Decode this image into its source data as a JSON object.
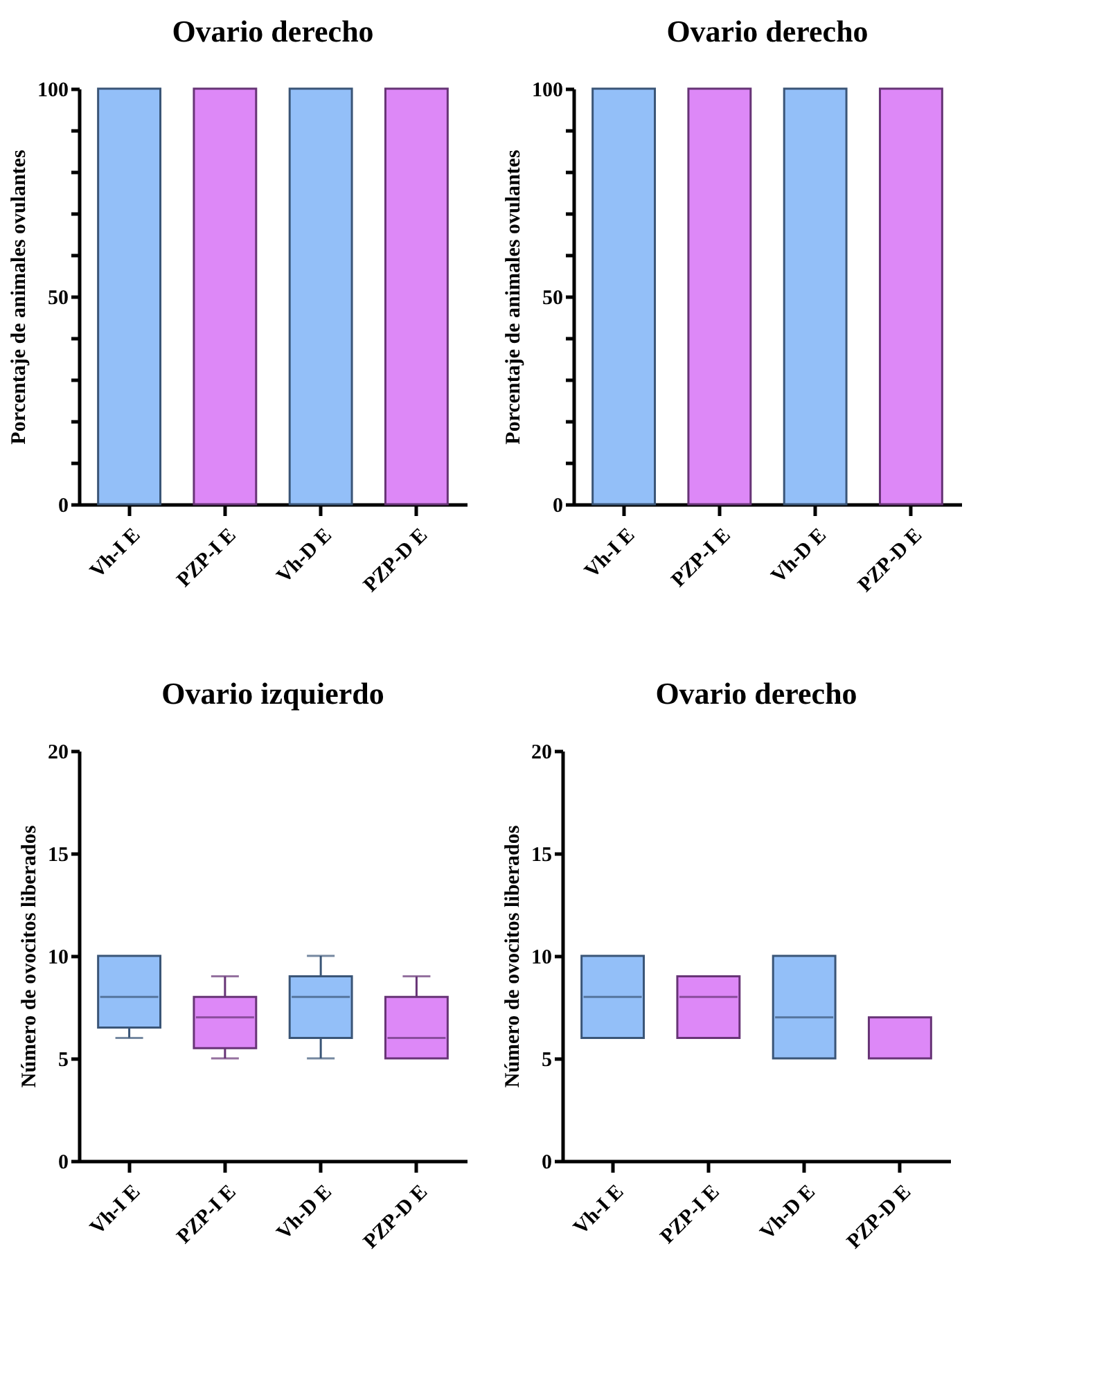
{
  "chart_data": [
    {
      "type": "bar",
      "title": "Ovario derecho",
      "ylabel": "Porcentaje de animales ovulantes",
      "categories": [
        "Vh-I E",
        "PZP-I E",
        "Vh-D E",
        "PZP-D E"
      ],
      "values": [
        100,
        100,
        100,
        100
      ],
      "colors": [
        "#93bff8",
        "#dd88f7",
        "#93bff8",
        "#dd88f7"
      ],
      "ylim": [
        0,
        100
      ],
      "yticks": [
        0,
        {
          "value": 10,
          "label": null
        },
        {
          "value": 20,
          "label": null
        },
        {
          "value": 30,
          "label": null
        },
        {
          "value": 40,
          "label": null
        },
        50,
        {
          "value": 60,
          "label": null
        },
        {
          "value": 70,
          "label": null
        },
        {
          "value": 80,
          "label": null
        },
        {
          "value": 90,
          "label": null
        },
        100
      ]
    },
    {
      "type": "bar",
      "title": "Ovario derecho",
      "ylabel": "Porcentaje de animales ovulantes",
      "categories": [
        "Vh-I E",
        "PZP-I E",
        "Vh-D E",
        "PZP-D E"
      ],
      "values": [
        100,
        100,
        100,
        100
      ],
      "colors": [
        "#93bff8",
        "#dd88f7",
        "#93bff8",
        "#dd88f7"
      ],
      "ylim": [
        0,
        100
      ],
      "yticks": [
        0,
        {
          "value": 10,
          "label": null
        },
        {
          "value": 20,
          "label": null
        },
        {
          "value": 30,
          "label": null
        },
        {
          "value": 40,
          "label": null
        },
        50,
        {
          "value": 60,
          "label": null
        },
        {
          "value": 70,
          "label": null
        },
        {
          "value": 80,
          "label": null
        },
        {
          "value": 90,
          "label": null
        },
        100
      ]
    },
    {
      "type": "box",
      "title": "Ovario izquierdo",
      "ylabel": "Número de ovocitos liberados",
      "categories": [
        "Vh-I E",
        "PZP-I E",
        "Vh-D E",
        "PZP-D E"
      ],
      "colors": [
        "#93bff8",
        "#dd88f7",
        "#93bff8",
        "#dd88f7"
      ],
      "ylim": [
        0,
        20
      ],
      "yticks": [
        0,
        5,
        10,
        15,
        20
      ],
      "boxes": [
        {
          "low": 6,
          "q1": 6.5,
          "median": 8,
          "q3": 10,
          "high": 10
        },
        {
          "low": 5,
          "q1": 5.5,
          "median": 7,
          "q3": 8,
          "high": 9
        },
        {
          "low": 5,
          "q1": 6,
          "median": 8,
          "q3": 9,
          "high": 10
        },
        {
          "low": 5,
          "q1": 5,
          "median": 6,
          "q3": 8,
          "high": 9
        }
      ]
    },
    {
      "type": "box",
      "title": "Ovario derecho",
      "ylabel": "Número de ovocitos liberados",
      "categories": [
        "Vh-I E",
        "PZP-I E",
        "Vh-D E",
        "PZP-D E"
      ],
      "colors": [
        "#93bff8",
        "#dd88f7",
        "#93bff8",
        "#dd88f7"
      ],
      "ylim": [
        0,
        20
      ],
      "yticks": [
        0,
        5,
        10,
        15,
        20
      ],
      "boxes": [
        {
          "low": 6,
          "q1": 6,
          "median": 8,
          "q3": 10,
          "high": 10
        },
        {
          "low": 6,
          "q1": 6,
          "median": 8,
          "q3": 9,
          "high": 9
        },
        {
          "low": 5,
          "q1": 5,
          "median": 7,
          "q3": 10,
          "high": 10
        },
        {
          "low": 5,
          "q1": 5,
          "median": 5,
          "q3": 7,
          "high": 7
        }
      ]
    }
  ]
}
